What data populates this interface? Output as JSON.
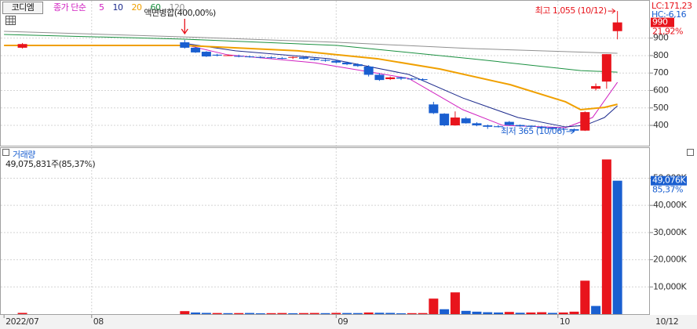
{
  "chart_data": [
    {
      "type": "candlestick",
      "title": "코디엠",
      "ma_label": "종가 단순",
      "x": [
        2,
        17,
        18,
        19,
        20,
        21,
        22,
        23,
        24,
        25,
        26,
        27,
        28,
        29,
        30,
        31,
        32,
        33,
        34,
        35,
        36,
        37,
        38,
        39,
        40,
        41,
        42,
        43,
        44,
        45,
        46,
        47,
        48,
        49,
        50,
        51,
        52,
        53,
        54,
        55,
        56,
        57
      ],
      "open": [
        845,
        876,
        845,
        822,
        805,
        800,
        798,
        795,
        792,
        790,
        786,
        788,
        790,
        782,
        775,
        770,
        760,
        750,
        737,
        690,
        665,
        675,
        668,
        665,
        520,
        467,
        400,
        440,
        412,
        400,
        395,
        420,
        402,
        398,
        392,
        388,
        380,
        378,
        370,
        610,
        651,
        940
      ],
      "high": [
        872,
        890,
        850,
        825,
        810,
        806,
        805,
        800,
        798,
        795,
        792,
        795,
        795,
        790,
        780,
        776,
        765,
        755,
        745,
        700,
        680,
        680,
        672,
        670,
        535,
        470,
        480,
        448,
        418,
        405,
        402,
        425,
        405,
        400,
        396,
        390,
        385,
        382,
        480,
        640,
        808,
        1055
      ],
      "low": [
        840,
        840,
        815,
        792,
        795,
        798,
        790,
        788,
        785,
        782,
        780,
        780,
        778,
        772,
        765,
        755,
        745,
        735,
        680,
        655,
        660,
        660,
        660,
        655,
        465,
        395,
        398,
        410,
        395,
        380,
        388,
        398,
        392,
        388,
        380,
        375,
        372,
        365,
        368,
        600,
        610,
        893
      ],
      "close": [
        866,
        845,
        818,
        795,
        800,
        802,
        795,
        792,
        790,
        786,
        784,
        792,
        782,
        775,
        770,
        760,
        750,
        740,
        690,
        660,
        675,
        668,
        665,
        660,
        470,
        400,
        445,
        412,
        400,
        392,
        390,
        402,
        395,
        392,
        385,
        380,
        378,
        370,
        476,
        625,
        808,
        990
      ],
      "up_color": "#e8141c",
      "down_color": "#1a5fd0",
      "series": [
        {
          "name": "5",
          "color": "#d020c0",
          "x": [
            17.3,
            21,
            29,
            37.7,
            42.7,
            46.4,
            52.2,
            54.7,
            57
          ],
          "values": [
            858,
            804,
            759,
            669,
            490,
            400,
            387,
            445,
            647
          ]
        },
        {
          "name": "10",
          "color": "#1c2a8c",
          "x": [
            17.3,
            21.7,
            30.4,
            37.7,
            42.7,
            47.8,
            52.2,
            54,
            55.8,
            57
          ],
          "values": [
            867,
            827,
            782,
            692,
            557,
            445,
            391,
            400,
            445,
            512
          ]
        },
        {
          "name": "20",
          "color": "#f0a000",
          "x": [
            0.3,
            17,
            27.5,
            34.8,
            40.6,
            47.1,
            52.2,
            53.6,
            55.8,
            57
          ],
          "values": [
            858,
            858,
            827,
            782,
            723,
            633,
            535,
            490,
            503,
            521
          ]
        },
        {
          "name": "60",
          "color": "#1a9040",
          "x": [
            0.3,
            17,
            31.1,
            43.5,
            53.6,
            57
          ],
          "values": [
            921,
            894,
            858,
            782,
            714,
            705
          ]
        },
        {
          "name": "120",
          "color": "#909090",
          "x": [
            0.3,
            17,
            31.1,
            43.5,
            57
          ],
          "values": [
            939,
            907,
            876,
            840,
            813
          ]
        }
      ],
      "annotations": [
        {
          "text": "액면병합(400,00%)",
          "x": 17,
          "color": "#222222"
        },
        {
          "text": "최고 1,055 (10/12)",
          "x": 57,
          "value": 1055,
          "color": "#e8141c"
        },
        {
          "text": "최저 365 (10/06)",
          "x": 53,
          "value": 365,
          "color": "#1a5fd0"
        }
      ],
      "lc_label": "LC:171,23",
      "hc_label": "HC:-6,16",
      "last_price": 990,
      "change_label": "21,92%",
      "xlim": [
        0,
        60
      ],
      "ylim": [
        288,
        1096
      ],
      "yticks": [
        400,
        500,
        600,
        700,
        800,
        900
      ],
      "grid": true
    },
    {
      "type": "bar",
      "title": "거래량",
      "subtitle": "49,075,831주(85,37%)",
      "x": [
        2,
        17,
        18,
        19,
        20,
        21,
        22,
        23,
        24,
        25,
        26,
        27,
        28,
        29,
        30,
        31,
        32,
        33,
        34,
        35,
        36,
        37,
        38,
        39,
        40,
        41,
        42,
        43,
        44,
        45,
        46,
        47,
        48,
        49,
        50,
        51,
        52,
        53,
        54,
        55,
        56,
        57
      ],
      "values": [
        450,
        1100,
        600,
        450,
        400,
        350,
        380,
        420,
        300,
        350,
        400,
        320,
        380,
        420,
        350,
        450,
        400,
        380,
        600,
        500,
        450,
        300,
        350,
        380,
        5700,
        1800,
        8000,
        1200,
        900,
        700,
        600,
        800,
        500,
        600,
        700,
        450,
        600,
        900,
        12300,
        3000,
        56900,
        49076
      ],
      "colors": [
        "#e8141c",
        "#e8141c",
        "#1a5fd0",
        "#1a5fd0",
        "#e8141c",
        "#1a5fd0",
        "#e8141c",
        "#1a5fd0",
        "#1a5fd0",
        "#e8141c",
        "#e8141c",
        "#1a5fd0",
        "#e8141c",
        "#e8141c",
        "#1a5fd0",
        "#e8141c",
        "#1a5fd0",
        "#1a5fd0",
        "#e8141c",
        "#1a5fd0",
        "#1a5fd0",
        "#1a5fd0",
        "#e8141c",
        "#e8141c",
        "#e8141c",
        "#1a5fd0",
        "#e8141c",
        "#1a5fd0",
        "#1a5fd0",
        "#1a5fd0",
        "#1a5fd0",
        "#e8141c",
        "#1a5fd0",
        "#e8141c",
        "#e8141c",
        "#1a5fd0",
        "#e8141c",
        "#e8141c",
        "#e8141c",
        "#1a5fd0",
        "#e8141c",
        "#1a5fd0"
      ],
      "last_value_label": "49,076K",
      "last_ratio_label": "85,37%",
      "xlim": [
        0,
        60
      ],
      "ylim": [
        0,
        60800
      ],
      "yticks": [
        {
          "value": 10000,
          "label": "10,000K"
        },
        {
          "value": 20000,
          "label": "20,000K"
        },
        {
          "value": 30000,
          "label": "30,000K"
        },
        {
          "value": 40000,
          "label": "40,000K"
        },
        {
          "value": 50000,
          "label": "50,000K"
        }
      ],
      "xticks": [
        {
          "value": 0.3,
          "label": "2022/07"
        },
        {
          "value": 8.4,
          "label": "08"
        },
        {
          "value": 31,
          "label": "09"
        },
        {
          "value": 51.5,
          "label": "10"
        }
      ],
      "x_end_label": "10/12",
      "grid": true
    }
  ]
}
